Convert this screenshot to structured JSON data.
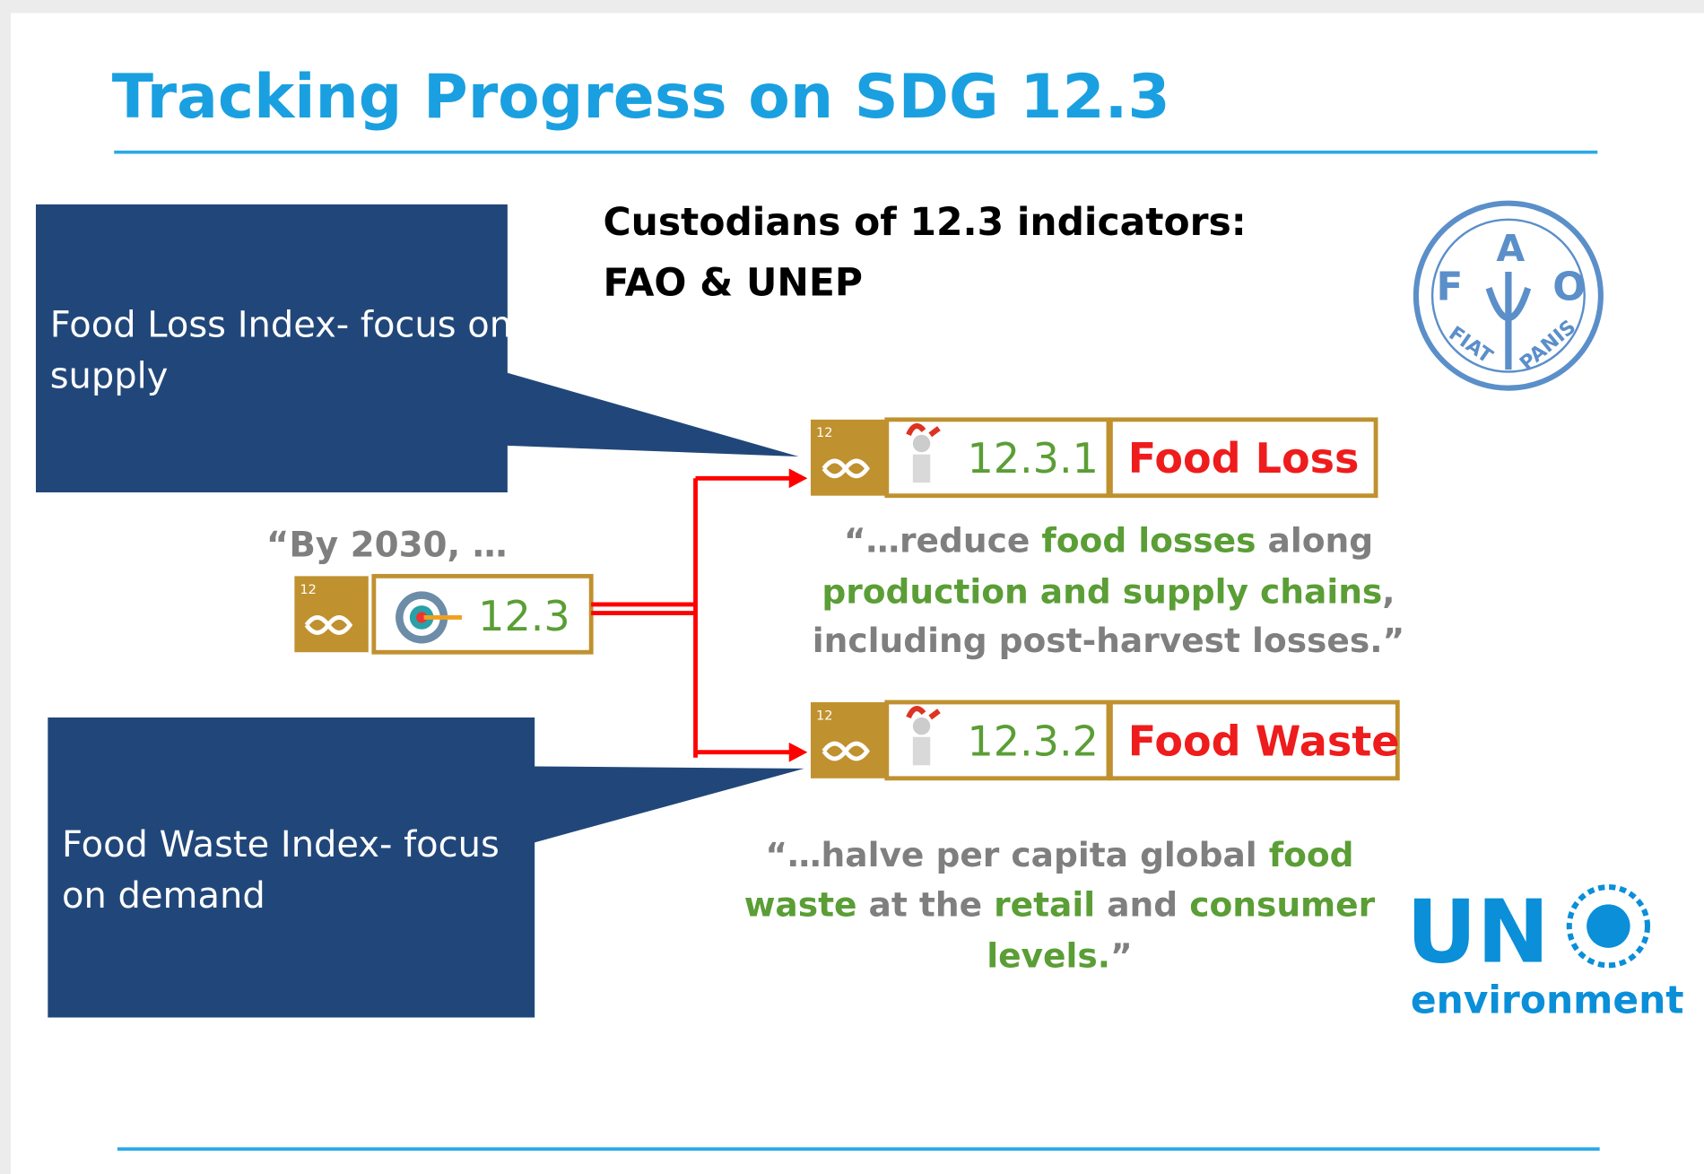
{
  "header": {
    "title": "Tracking Progress on SDG 12.3"
  },
  "custodians": {
    "lines": [
      "Custodians of 12.3 indicators:",
      "FAO & UNEP"
    ]
  },
  "callouts": [
    {
      "lines": [
        "Food Loss Index- focus on",
        "supply"
      ]
    },
    {
      "lines": [
        "Food Waste Index- focus",
        "on demand"
      ]
    }
  ],
  "target": {
    "intro": "“By 2030, …",
    "sdg_number": "12",
    "code": "12.3"
  },
  "indicators": [
    {
      "sdg_number": "12",
      "code": "12.3.1",
      "name": "Food Loss",
      "quote": [
        [
          {
            "text": "“…reduce ",
            "color": "#7f7f7f"
          },
          {
            "text": "food losses",
            "color": "#5a9e35"
          },
          {
            "text": " along",
            "color": "#7f7f7f"
          }
        ],
        [
          {
            "text": "production and supply chains",
            "color": "#5a9e35"
          },
          {
            "text": ",",
            "color": "#7f7f7f"
          }
        ],
        [
          {
            "text": "including post-harvest losses.”",
            "color": "#7f7f7f"
          }
        ]
      ]
    },
    {
      "sdg_number": "12",
      "code": "12.3.2",
      "name": "Food Waste",
      "quote": [
        [
          {
            "text": "“…halve per capita global ",
            "color": "#7f7f7f"
          },
          {
            "text": "food",
            "color": "#5a9e35"
          }
        ],
        [
          {
            "text": "waste",
            "color": "#5a9e35"
          },
          {
            "text": " at the ",
            "color": "#7f7f7f"
          },
          {
            "text": "retail",
            "color": "#5a9e35"
          },
          {
            "text": " and ",
            "color": "#7f7f7f"
          },
          {
            "text": "consumer",
            "color": "#5a9e35"
          }
        ],
        [
          {
            "text": "levels.",
            "color": "#5a9e35"
          },
          {
            "text": "”",
            "color": "#7f7f7f"
          }
        ]
      ]
    }
  ],
  "logos": {
    "fao": {
      "letters": [
        "F",
        "A",
        "O"
      ],
      "motto": [
        "FIAT",
        "PANIS"
      ]
    },
    "un_environment": {
      "mark": "UN",
      "word": "environment"
    }
  }
}
